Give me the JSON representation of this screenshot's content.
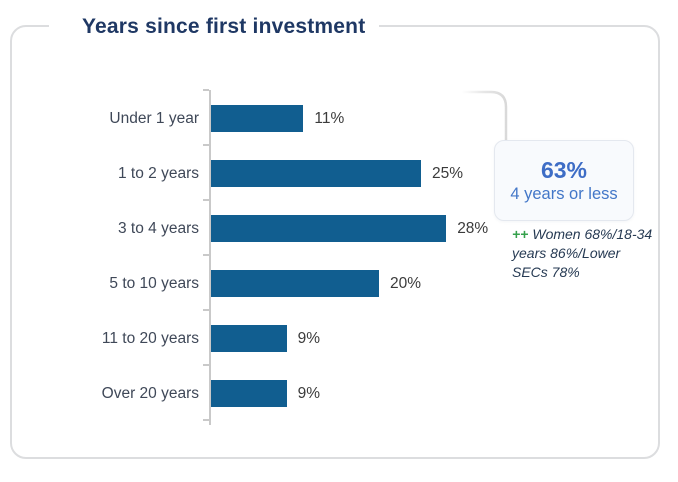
{
  "card": {
    "title": "Years since first investment"
  },
  "chart_data": {
    "type": "bar",
    "orientation": "horizontal",
    "title": "Years since first investment",
    "categories": [
      "Under 1 year",
      "1 to 2 years",
      "3 to 4 years",
      "5 to 10 years",
      "11 to 20 years",
      "Over 20 years"
    ],
    "values": [
      11,
      25,
      28,
      20,
      9,
      9
    ],
    "value_labels": [
      "11%",
      "25%",
      "28%",
      "20%",
      "9%",
      "9%"
    ],
    "xlim": [
      0,
      30
    ],
    "xlabel": "",
    "ylabel": "",
    "grid": false,
    "legend_position": "none",
    "bar_color": "#115e90",
    "axis_color": "#c9c9c9"
  },
  "callout": {
    "value": "63%",
    "label": "4 years or less"
  },
  "annotation": {
    "marker": "++",
    "text": "Women 68%/18-34 years 86%/Lower SECs 78%"
  },
  "colors": {
    "title": "#1f3864",
    "category_label": "#3f4858",
    "value_label": "#3b3b3b",
    "callout_value": "#3e6dc6",
    "callout_label": "#4377c8",
    "annotation_marker": "#35a14c",
    "annotation_text": "#263a53",
    "card_border": "#dcdddf",
    "bracket": "#d9d9d9"
  }
}
